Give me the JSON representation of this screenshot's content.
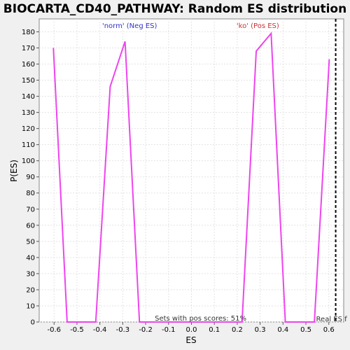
{
  "chart_data": {
    "type": "line",
    "title": "BIOCARTA_CD40_PATHWAY: Random ES distribution",
    "xlabel": "ES",
    "ylabel": "P(ES)",
    "xlim": [
      -0.665,
      0.665
    ],
    "ylim": [
      0,
      188
    ],
    "x_ticks": [
      -0.6,
      -0.5,
      -0.4,
      -0.3,
      -0.2,
      -0.1,
      0.0,
      0.1,
      0.2,
      0.3,
      0.4,
      0.5,
      0.6
    ],
    "x_tick_labels": [
      "-0.6",
      "-0.5",
      "-0.4",
      "-0.3",
      "-0.2",
      "-0.1",
      "0.0",
      "0.1",
      "0.2",
      "0.3",
      "0.4",
      "0.5",
      "0.6"
    ],
    "y_ticks": [
      0,
      10,
      20,
      30,
      40,
      50,
      60,
      70,
      80,
      90,
      100,
      110,
      120,
      130,
      140,
      150,
      160,
      170,
      180
    ],
    "grid": true,
    "series": [
      {
        "color": "#ee44ee",
        "x": [
          -0.603,
          -0.543,
          -0.418,
          -0.355,
          -0.29,
          -0.227,
          0.221,
          0.283,
          0.348,
          0.41,
          0.537,
          0.602
        ],
        "y": [
          170,
          0,
          0,
          146,
          174,
          0,
          0,
          168,
          179,
          0,
          0,
          163
        ]
      }
    ],
    "annotations": {
      "neg_label": "'norm' (Neg ES)",
      "neg_color": "#3333cc",
      "neg_x": -0.27,
      "pos_label": "'ko' (Pos ES)",
      "pos_color": "#cc3333",
      "pos_x": 0.29,
      "bottom_note": "Sets with pos scores: 51%",
      "bottom_note_x": 0.04,
      "real_es_label": "Real ES f",
      "real_es_x": 0.63
    }
  }
}
